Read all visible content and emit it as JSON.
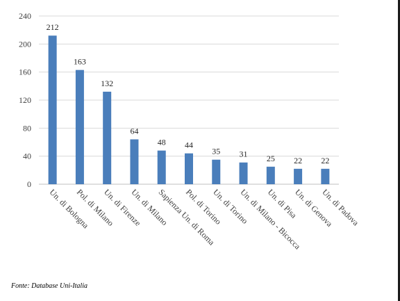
{
  "chart_data": {
    "type": "bar",
    "categories": [
      "Un. di Bologna",
      "Pol. di Milano",
      "Un. di Firenze",
      "Un. di Milano",
      "Sapienza Un. di Roma",
      "Pol. di Torino",
      "Un. di Torino",
      "Un. di Milano - Bicocca",
      "Un. di Pisa",
      "Un. di Genova",
      "Un. di Padova"
    ],
    "values": [
      212,
      163,
      132,
      64,
      48,
      44,
      35,
      31,
      25,
      22,
      22
    ],
    "yticks": [
      0,
      40,
      80,
      120,
      160,
      200,
      240
    ],
    "ylim": [
      0,
      240
    ],
    "grid": true,
    "bar_color": "#4a7ebb",
    "title": "",
    "xlabel": "",
    "ylabel": ""
  },
  "source_note": "Fonte: Database Uni-Italia"
}
